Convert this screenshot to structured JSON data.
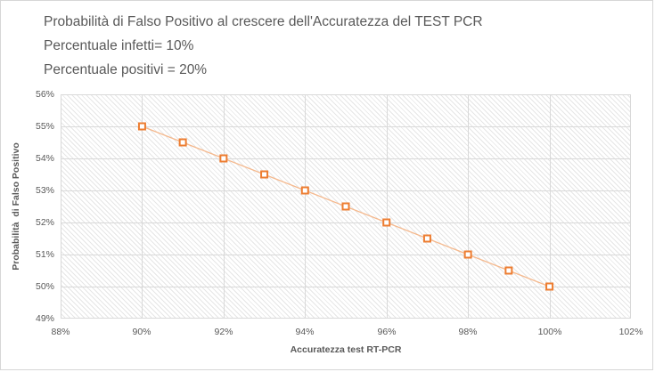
{
  "chart": {
    "title": "Probabilità di Falso Positivo al crescere dell'Accuratezza del TEST PCR",
    "subtitle1": "Percentuale infetti= 10%",
    "subtitle2": "Percentuale positivi = 20%"
  },
  "chart_data": {
    "type": "line",
    "title": "Probabilità di Falso Positivo al crescere dell'Accuratezza del TEST PCR",
    "subtitles": [
      "Percentuale infetti= 10%",
      "Percentuale positivi = 20%"
    ],
    "x": [
      90,
      91,
      92,
      93,
      94,
      95,
      96,
      97,
      98,
      99,
      100
    ],
    "y": [
      55,
      54.5,
      54,
      53.5,
      53,
      52.5,
      52,
      51.5,
      51,
      50.5,
      50
    ],
    "x_unit": "%",
    "y_unit": "%",
    "xlabel": "Accuratezza test RT-PCR",
    "ylabel": "Probabilità  di Falso Positivo",
    "xlim": [
      88,
      102
    ],
    "ylim": [
      49,
      56
    ],
    "x_ticks": [
      88,
      90,
      92,
      94,
      96,
      98,
      100,
      102
    ],
    "y_ticks": [
      56,
      55,
      54,
      53,
      52,
      51,
      50,
      49
    ],
    "x_tick_labels": [
      "88%",
      "90%",
      "92%",
      "94%",
      "96%",
      "98%",
      "100%",
      "102%"
    ],
    "y_tick_labels": [
      "56%",
      "55%",
      "54%",
      "53%",
      "52%",
      "51%",
      "50%",
      "49%"
    ],
    "grid": true,
    "legend": "none",
    "marker": "open-square",
    "plot_area_fill": "diagonal-hatch",
    "colors": {
      "marker_border": "#ED7D31",
      "marker_fill": "#FFFFFF",
      "line": "#F5B98E",
      "gridline": "#D9D9D9",
      "hatch": "#E6E6E6",
      "text": "#595959",
      "chart_border": "#D6D6D6"
    }
  }
}
